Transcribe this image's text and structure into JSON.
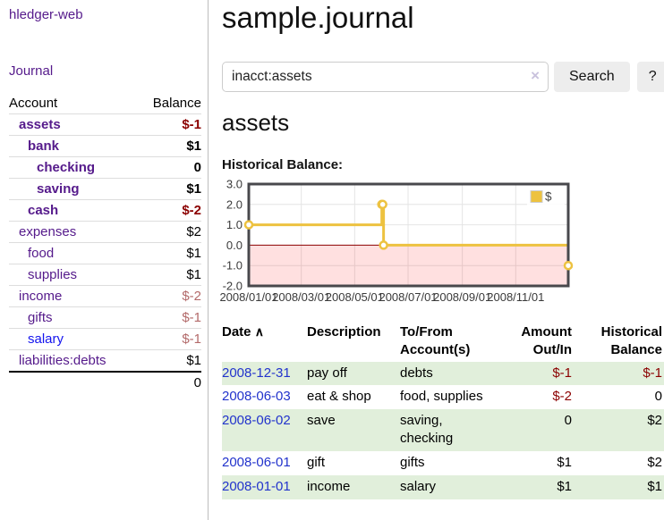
{
  "colors": {
    "accent_purple": "#551a8b",
    "link_blue": "#1414ee",
    "date_link_blue": "#2233cc",
    "negative": "#8b0000",
    "negative_muted": "#b36a6a",
    "row_green": "#e1efdb",
    "chart_gold": "#edc240"
  },
  "sidebar": {
    "brand": "hledger-web",
    "journal_link": "Journal",
    "account_header": "Account",
    "balance_header": "Balance",
    "accounts": [
      {
        "name": "assets",
        "balance": "$-1",
        "depth": 1,
        "bold": true,
        "balance_class": "neg"
      },
      {
        "name": "bank",
        "balance": "$1",
        "depth": 2,
        "bold": true,
        "balance_class": ""
      },
      {
        "name": "checking",
        "balance": "0",
        "depth": 3,
        "bold": true,
        "balance_class": ""
      },
      {
        "name": "saving",
        "balance": "$1",
        "depth": 3,
        "bold": true,
        "balance_class": ""
      },
      {
        "name": "cash",
        "balance": "$-2",
        "depth": 2,
        "bold": true,
        "balance_class": "neg"
      },
      {
        "name": "expenses",
        "balance": "$2",
        "depth": 1,
        "bold": false,
        "balance_class": ""
      },
      {
        "name": "food",
        "balance": "$1",
        "depth": 2,
        "bold": false,
        "balance_class": ""
      },
      {
        "name": "supplies",
        "balance": "$1",
        "depth": 2,
        "bold": false,
        "balance_class": ""
      },
      {
        "name": "income",
        "balance": "$-2",
        "depth": 1,
        "bold": false,
        "balance_class": "negsoft"
      },
      {
        "name": "gifts",
        "balance": "$-1",
        "depth": 2,
        "bold": false,
        "balance_class": "negsoft"
      },
      {
        "name": "salary",
        "balance": "$-1",
        "depth": 2,
        "bold": false,
        "balance_class": "negsoft",
        "link_class": "blue"
      },
      {
        "name": "liabilities:debts",
        "balance": "$1",
        "depth": 1,
        "bold": false,
        "balance_class": ""
      }
    ],
    "total": "0"
  },
  "main": {
    "title": "sample.journal",
    "search": {
      "value": "inacct:assets",
      "clear_icon": "×",
      "search_button": "Search",
      "help_button": "?"
    },
    "account_heading": "assets",
    "section_label": "Historical Balance:"
  },
  "chart_data": {
    "type": "line",
    "step": true,
    "title": "Historical Balance",
    "x_range": [
      "2008-01-01",
      "2008-12-31"
    ],
    "ylim": [
      -2,
      3
    ],
    "yticks": [
      "3.0",
      "2.0",
      "1.0",
      "0.0",
      "-1.0",
      "-2.0"
    ],
    "xticks": [
      {
        "label": "2008/01/01",
        "date": "2008-01-01"
      },
      {
        "label": "2008/03/01",
        "date": "2008-03-01"
      },
      {
        "label": "2008/05/01",
        "date": "2008-05-01"
      },
      {
        "label": "2008/07/01",
        "date": "2008-07-01"
      },
      {
        "label": "2008/09/01",
        "date": "2008-09-01"
      },
      {
        "label": "2008/11/01",
        "date": "2008-11-01"
      }
    ],
    "series": [
      {
        "name": "$",
        "color": "#edc240",
        "points": [
          {
            "date": "2008-01-01",
            "value": 1
          },
          {
            "date": "2008-06-01",
            "value": 2
          },
          {
            "date": "2008-06-02",
            "value": 2
          },
          {
            "date": "2008-06-03",
            "value": 0
          },
          {
            "date": "2008-12-31",
            "value": -1
          }
        ]
      }
    ],
    "legend": [
      {
        "label": "$",
        "color": "#edc240"
      }
    ],
    "legend_position": "top-right",
    "grid": true,
    "negative_region_fill": "rgba(255,0,0,0.12)",
    "zero_line_color": "#8b0000"
  },
  "register": {
    "headers": [
      {
        "label": "Date"
      },
      {
        "label": "Description"
      },
      {
        "label": "To/From Account(s)"
      },
      {
        "label": "Amount Out/In"
      },
      {
        "label": "Historical Balance"
      }
    ],
    "sort_arrow": "∧",
    "rows": [
      {
        "date": "2008-12-31",
        "description": "pay off",
        "accounts": "debts",
        "amount": "$-1",
        "amount_class": "neg",
        "balance": "$-1",
        "balance_class": "neg"
      },
      {
        "date": "2008-06-03",
        "description": "eat & shop",
        "accounts": "food, supplies",
        "amount": "$-2",
        "amount_class": "neg",
        "balance": "0",
        "balance_class": ""
      },
      {
        "date": "2008-06-02",
        "description": "save",
        "accounts": "saving, checking",
        "amount": "0",
        "amount_class": "",
        "balance": "$2",
        "balance_class": ""
      },
      {
        "date": "2008-06-01",
        "description": "gift",
        "accounts": "gifts",
        "amount": "$1",
        "amount_class": "",
        "balance": "$2",
        "balance_class": ""
      },
      {
        "date": "2008-01-01",
        "description": "income",
        "accounts": "salary",
        "amount": "$1",
        "amount_class": "",
        "balance": "$1",
        "balance_class": ""
      }
    ]
  }
}
